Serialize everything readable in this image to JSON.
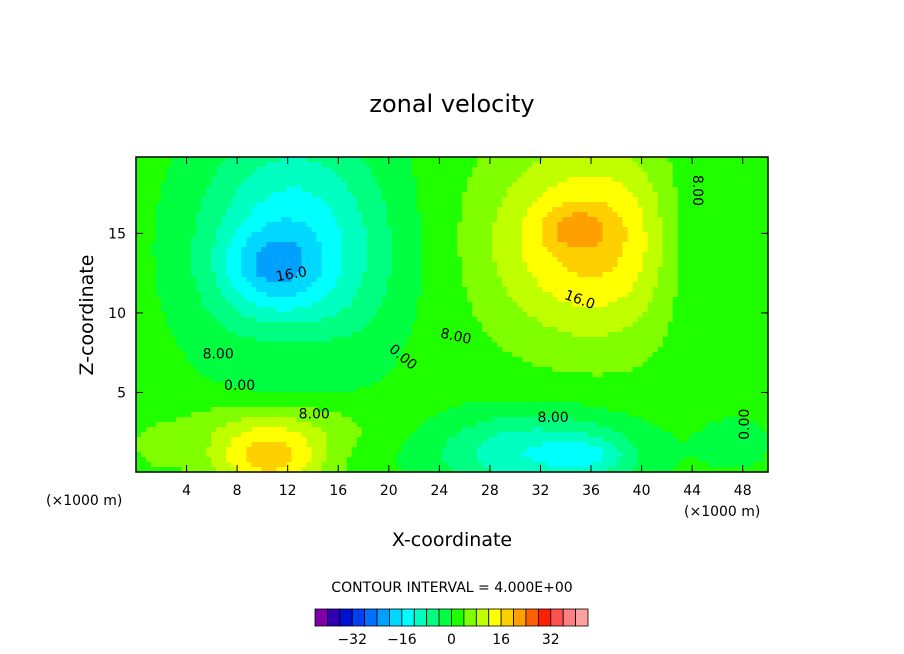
{
  "chart_data": {
    "type": "heatmap",
    "title": "zonal velocity",
    "xlabel": "X-coordinate",
    "ylabel": "Z-coordinate",
    "x_scale_note": "(×1000 m)",
    "z_scale_note": "(×1000 m)",
    "xlim": [
      0,
      50
    ],
    "ylim": [
      0,
      19.8
    ],
    "x_ticks": [
      4,
      8,
      12,
      16,
      20,
      24,
      28,
      32,
      36,
      40,
      44,
      48
    ],
    "y_ticks": [
      5,
      10,
      15
    ],
    "contour_interval_text": "CONTOUR INTERVAL = 4.000E+00",
    "contour_labels": [
      {
        "text": "16.0",
        "x": 12.3,
        "z": 12.4,
        "angle": -10
      },
      {
        "text": "8.00",
        "x": 6.5,
        "z": 7.4,
        "angle": 0
      },
      {
        "text": "0.00",
        "x": 8.2,
        "z": 5.4,
        "angle": 0
      },
      {
        "text": "8.00",
        "x": 14.1,
        "z": 3.6,
        "angle": 0
      },
      {
        "text": "0.00",
        "x": 21.1,
        "z": 7.2,
        "angle": 40
      },
      {
        "text": "8.00",
        "x": 25.3,
        "z": 8.5,
        "angle": 12
      },
      {
        "text": "16.0",
        "x": 35.1,
        "z": 10.8,
        "angle": 20
      },
      {
        "text": "8.00",
        "x": 33.0,
        "z": 3.4,
        "angle": 0
      },
      {
        "text": "8.00",
        "x": 44.4,
        "z": 17.7,
        "angle": 90
      },
      {
        "text": "0.00",
        "x": 48.2,
        "z": 3.0,
        "angle": -90
      }
    ],
    "colorbar": {
      "levels": [
        -40,
        -36,
        -32,
        -28,
        -24,
        -20,
        -16,
        -12,
        -8,
        -4,
        0,
        4,
        8,
        12,
        16,
        20,
        24,
        28,
        32,
        36,
        40
      ],
      "colors": [
        "#8000a8",
        "#3000b0",
        "#0010d0",
        "#0040f0",
        "#0070ff",
        "#00a0ff",
        "#00d8ff",
        "#00ffff",
        "#00ffc0",
        "#00ff80",
        "#00ff40",
        "#20ff00",
        "#80ff00",
        "#c0ff00",
        "#ffff00",
        "#ffd000",
        "#ffa000",
        "#ff6000",
        "#ff2000",
        "#ff5050",
        "#ff8080",
        "#ffa0a0"
      ],
      "tick_labels": [
        "−32",
        "−16",
        "0",
        "16",
        "32"
      ],
      "tick_values": [
        -32,
        -16,
        0,
        16,
        32
      ]
    },
    "field": {
      "background": 2,
      "blobs": [
        {
          "x": 12.5,
          "z": 14.0,
          "sx": 7.5,
          "sz": 7.5,
          "a": -18
        },
        {
          "x": 10.5,
          "z": 13.0,
          "sx": 3.5,
          "sz": 2.2,
          "a": -8
        },
        {
          "x": 12.5,
          "z": 8.0,
          "sx": 5.0,
          "sz": 2.0,
          "a": 4
        },
        {
          "x": 36.0,
          "z": 14.5,
          "sx": 8.0,
          "sz": 6.0,
          "a": 16
        },
        {
          "x": 34.8,
          "z": 15.3,
          "sx": 2.5,
          "sz": 1.3,
          "a": 6
        },
        {
          "x": 31.5,
          "z": 1.2,
          "sx": 8.0,
          "sz": 2.6,
          "a": -14
        },
        {
          "x": 36.0,
          "z": 1.0,
          "sx": 3.0,
          "sz": 1.2,
          "a": -6
        },
        {
          "x": 10.5,
          "z": 0.8,
          "sx": 4.5,
          "sz": 2.0,
          "a": 16
        },
        {
          "x": 11.5,
          "z": 3.0,
          "sx": 8.0,
          "sz": 1.8,
          "a": 6
        },
        {
          "x": 2.0,
          "z": 1.5,
          "sx": 2.0,
          "sz": 1.2,
          "a": 4
        },
        {
          "x": 44.0,
          "z": 14.5,
          "sx": 3.5,
          "sz": 6.0,
          "a": -6
        },
        {
          "x": 47.5,
          "z": 1.8,
          "sx": 3.0,
          "sz": 1.8,
          "a": -4
        },
        {
          "x": 21.0,
          "z": 11.0,
          "sx": 1.8,
          "sz": 6.0,
          "a": 0
        }
      ]
    }
  }
}
